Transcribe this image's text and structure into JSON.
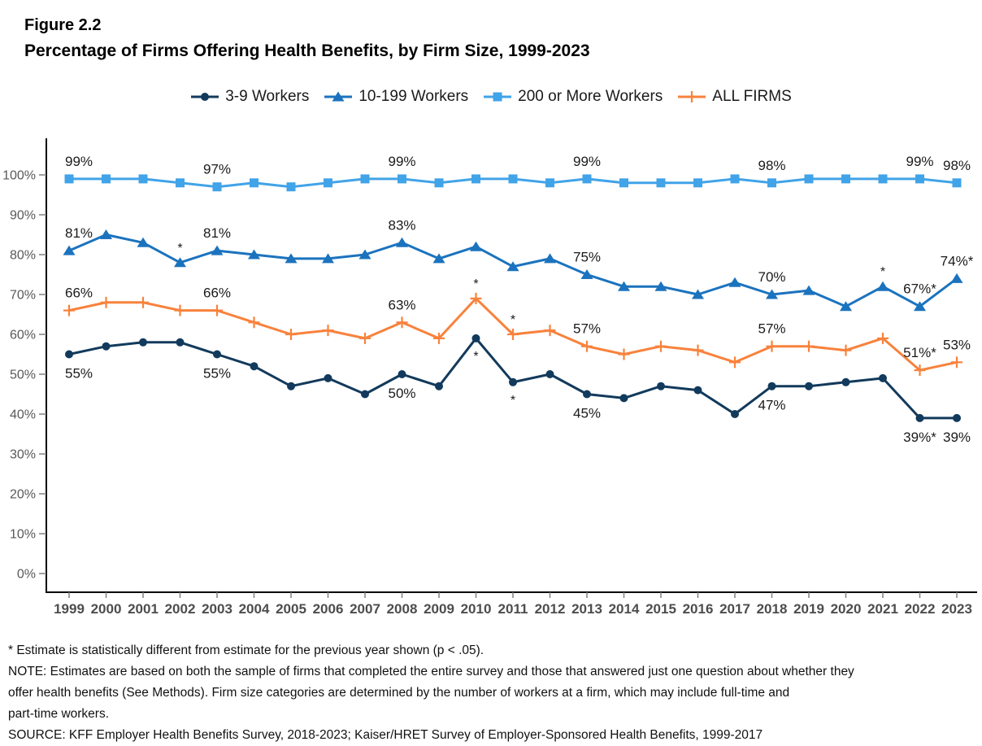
{
  "figure": {
    "label": "Figure 2.2",
    "title": "Percentage of Firms Offering Health Benefits, by Firm Size, 1999-2023"
  },
  "chart_data": {
    "type": "line",
    "title": "Percentage of Firms Offering Health Benefits, by Firm Size, 1999-2023",
    "x": [
      1999,
      2000,
      2001,
      2002,
      2003,
      2004,
      2005,
      2006,
      2007,
      2008,
      2009,
      2010,
      2011,
      2012,
      2013,
      2014,
      2015,
      2016,
      2017,
      2018,
      2019,
      2020,
      2021,
      2022,
      2023
    ],
    "ylim": [
      0,
      100
    ],
    "yticks": [
      "0%",
      "10%",
      "20%",
      "30%",
      "40%",
      "50%",
      "60%",
      "70%",
      "80%",
      "90%",
      "100%"
    ],
    "grid": false,
    "legend_position": "top-center",
    "axis_colors": {
      "axis_line": "#000000",
      "tick": "#808080",
      "x_label": "#4d4d4d",
      "y_label": "#595959",
      "data_label": "#1a1a1a"
    },
    "series": [
      {
        "name": "3-9 Workers",
        "color": "#123a5c",
        "marker": "circle",
        "label_side": "below",
        "values": [
          55,
          57,
          58,
          58,
          55,
          52,
          47,
          49,
          45,
          50,
          47,
          59,
          48,
          50,
          45,
          44,
          47,
          46,
          40,
          47,
          47,
          48,
          49,
          39,
          39
        ],
        "point_labels": [
          {
            "year": 1999,
            "text": "55%"
          },
          {
            "year": 2003,
            "text": "55%"
          },
          {
            "year": 2008,
            "text": "50%"
          },
          {
            "year": 2013,
            "text": "45%"
          },
          {
            "year": 2018,
            "text": "47%"
          },
          {
            "year": 2022,
            "text": "39%*"
          },
          {
            "year": 2023,
            "text": "39%"
          }
        ]
      },
      {
        "name": "10-199 Workers",
        "color": "#1b73be",
        "marker": "triangle",
        "label_side": "above",
        "values": [
          81,
          85,
          83,
          78,
          81,
          80,
          79,
          79,
          80,
          83,
          79,
          82,
          77,
          79,
          75,
          72,
          72,
          70,
          73,
          70,
          71,
          67,
          72,
          67,
          74
        ],
        "point_labels": [
          {
            "year": 1999,
            "text": "81%"
          },
          {
            "year": 2003,
            "text": "81%"
          },
          {
            "year": 2008,
            "text": "83%"
          },
          {
            "year": 2013,
            "text": "75%"
          },
          {
            "year": 2018,
            "text": "70%"
          },
          {
            "year": 2022,
            "text": "67%*"
          },
          {
            "year": 2023,
            "text": "74%*"
          }
        ]
      },
      {
        "name": "200 or More Workers",
        "color": "#41a3e8",
        "marker": "square",
        "label_side": "above",
        "values": [
          99,
          99,
          99,
          98,
          97,
          98,
          97,
          98,
          99,
          99,
          98,
          99,
          99,
          98,
          99,
          98,
          98,
          98,
          99,
          98,
          99,
          99,
          99,
          99,
          98
        ],
        "point_labels": [
          {
            "year": 1999,
            "text": "99%"
          },
          {
            "year": 2003,
            "text": "97%"
          },
          {
            "year": 2008,
            "text": "99%"
          },
          {
            "year": 2013,
            "text": "99%"
          },
          {
            "year": 2018,
            "text": "98%"
          },
          {
            "year": 2022,
            "text": "99%"
          },
          {
            "year": 2023,
            "text": "98%"
          }
        ]
      },
      {
        "name": "ALL FIRMS",
        "color": "#f8823c",
        "marker": "plus",
        "label_side": "above",
        "values": [
          66,
          68,
          68,
          66,
          66,
          63,
          60,
          61,
          59,
          63,
          59,
          69,
          60,
          61,
          57,
          55,
          57,
          56,
          53,
          57,
          57,
          56,
          59,
          51,
          53
        ],
        "point_labels": [
          {
            "year": 1999,
            "text": "66%"
          },
          {
            "year": 2003,
            "text": "66%"
          },
          {
            "year": 2008,
            "text": "63%"
          },
          {
            "year": 2013,
            "text": "57%"
          },
          {
            "year": 2018,
            "text": "57%"
          },
          {
            "year": 2022,
            "text": "51%*"
          },
          {
            "year": 2023,
            "text": "53%"
          }
        ]
      }
    ],
    "asterisks": [
      {
        "year": 2002,
        "series": "10-199 Workers",
        "side": "above"
      },
      {
        "year": 2010,
        "series": "ALL FIRMS",
        "side": "above"
      },
      {
        "year": 2010,
        "series": "3-9 Workers",
        "side": "below"
      },
      {
        "year": 2011,
        "series": "ALL FIRMS",
        "side": "above"
      },
      {
        "year": 2011,
        "series": "3-9 Workers",
        "side": "below"
      },
      {
        "year": 2021,
        "series": "10-199 Workers",
        "side": "above"
      }
    ]
  },
  "footnotes": {
    "lines": [
      "* Estimate is statistically different from estimate for the previous year shown (p < .05).",
      "NOTE: Estimates are based on both the sample of firms that completed the entire survey and those that answered just one question about whether they",
      "offer health benefits (See Methods). Firm size categories are determined by the number of workers at a firm, which may include full-time and",
      "part-time workers.",
      "SOURCE: KFF Employer Health Benefits Survey, 2018-2023; Kaiser/HRET Survey of Employer-Sponsored Health Benefits, 1999-2017"
    ]
  }
}
